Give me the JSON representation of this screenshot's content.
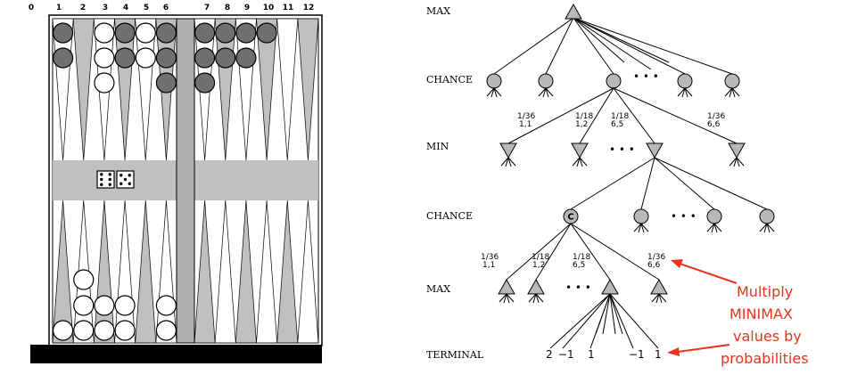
{
  "board": {
    "point_labels": [
      "0",
      "1",
      "2",
      "3",
      "4",
      "5",
      "6",
      "7",
      "8",
      "9",
      "10",
      "11",
      "12"
    ],
    "dice": [
      6,
      5
    ],
    "colors": {
      "dark_checker": "#707070",
      "light_checker": "#ffffff",
      "triangle": "#c0c0c0",
      "bar": "#000000"
    }
  },
  "tree": {
    "levels": [
      "MAX",
      "CHANCE",
      "MIN",
      "CHANCE",
      "MAX",
      "TERMINAL"
    ],
    "chance_node_label": "C",
    "probs_top": [
      {
        "p": "1/36",
        "roll": "1,1"
      },
      {
        "p": "1/18",
        "roll": "1,2"
      },
      {
        "p": "1/18",
        "roll": "6,5"
      },
      {
        "p": "1/36",
        "roll": "6,6"
      }
    ],
    "probs_bottom": [
      {
        "p": "1/36",
        "roll": "1,1"
      },
      {
        "p": "1/18",
        "roll": "1,2"
      },
      {
        "p": "1/18",
        "roll": "6,5"
      },
      {
        "p": "1/36",
        "roll": "6,6"
      }
    ],
    "ellipsis": "...",
    "ellipsis_top": "• • •",
    "terminal_values": [
      "2",
      "−1",
      "1",
      "−1",
      "1"
    ]
  },
  "annotation": {
    "lines": [
      "Multiply",
      "MINIMAX",
      "values by",
      "probabilities"
    ],
    "color": "#e8341c"
  }
}
